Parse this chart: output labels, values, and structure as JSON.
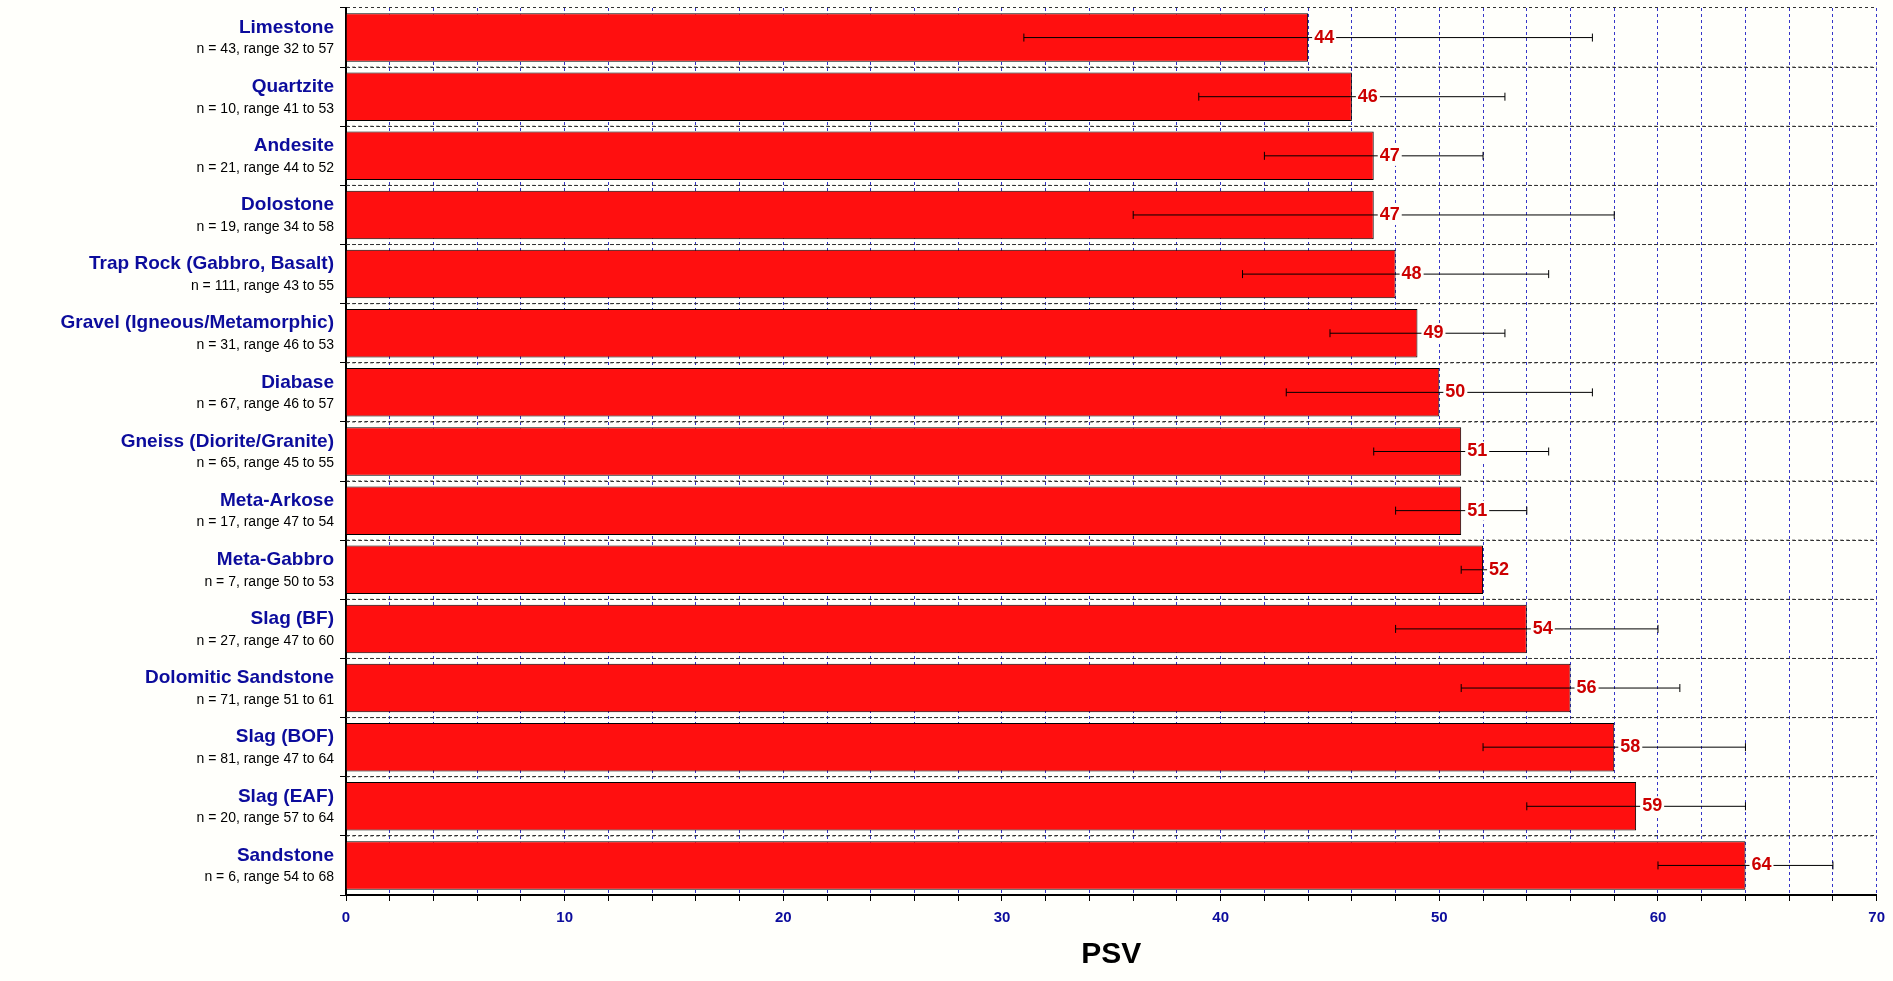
{
  "chart_data": {
    "type": "bar",
    "orientation": "horizontal",
    "xlabel": "PSV",
    "categories": [
      "Limestone\nn = 43, range 32 to 57",
      "Quartzite\nn = 10, range 41 to 53",
      "Andesite\nn = 21, range 44 to 52",
      "Dolostone\nn = 19, range 34 to 58",
      "Trap Rock (Gabbro, Basalt)\nn = 111, range 43 to 55",
      "Gravel (Igneous/Metamorphic)\nn = 31, range 46 to 53",
      "Diabase\nn = 67, range 46 to 57",
      "Gneiss (Diorite/Granite)\nn = 65, range 45 to 55",
      "Meta-Arkose\nn = 17, range 47 to 54",
      "Meta-Gabbro\nn = 7, range 50 to 53",
      "Slag (BF)\nn = 27, range 47 to 60",
      "Dolomitic Sandstone\nn = 71, range 51 to 61",
      "Slag (BOF)\nn = 81, range 47 to 64",
      "Slag (EAF)\nn = 20, range 57 to 64",
      "Sandstone\nn = 6, range 54 to 68"
    ],
    "values": [
      44,
      46,
      47,
      47,
      48,
      49,
      50,
      51,
      51,
      52,
      54,
      56,
      58,
      59,
      64
    ],
    "errors": [
      [
        31,
        57
      ],
      [
        39,
        53
      ],
      [
        42,
        52
      ],
      [
        36,
        58
      ],
      [
        41,
        55
      ],
      [
        45,
        53
      ],
      [
        43,
        57
      ],
      [
        47,
        55
      ],
      [
        48,
        54
      ],
      [
        51,
        53
      ],
      [
        48,
        60
      ],
      [
        51,
        61
      ],
      [
        52,
        64
      ],
      [
        54,
        64
      ],
      [
        60,
        68
      ]
    ],
    "color": "#ff0f0f",
    "data_labels": true,
    "grid": true,
    "legend": false,
    "xlim": [
      0,
      70
    ],
    "xticks": [
      0,
      {
        "value": 2,
        "label": null
      },
      {
        "value": 4,
        "label": null
      },
      {
        "value": 6,
        "label": null
      },
      {
        "value": 8,
        "label": null
      },
      10,
      {
        "value": 12,
        "label": null
      },
      {
        "value": 14,
        "label": null
      },
      {
        "value": 16,
        "label": null
      },
      {
        "value": 18,
        "label": null
      },
      20,
      {
        "value": 22,
        "label": null
      },
      {
        "value": 24,
        "label": null
      },
      {
        "value": 26,
        "label": null
      },
      {
        "value": 28,
        "label": null
      },
      30,
      {
        "value": 32,
        "label": null
      },
      {
        "value": 34,
        "label": null
      },
      {
        "value": 36,
        "label": null
      },
      {
        "value": 38,
        "label": null
      },
      40,
      {
        "value": 42,
        "label": null
      },
      {
        "value": 44,
        "label": null
      },
      {
        "value": 46,
        "label": null
      },
      {
        "value": 48,
        "label": null
      },
      50,
      {
        "value": 52,
        "label": null
      },
      {
        "value": 54,
        "label": null
      },
      {
        "value": 56,
        "label": null
      },
      {
        "value": 58,
        "label": null
      },
      60,
      {
        "value": 62,
        "label": null
      },
      {
        "value": 64,
        "label": null
      },
      {
        "value": 66,
        "label": null
      },
      {
        "value": 68,
        "label": null
      },
      70
    ]
  }
}
